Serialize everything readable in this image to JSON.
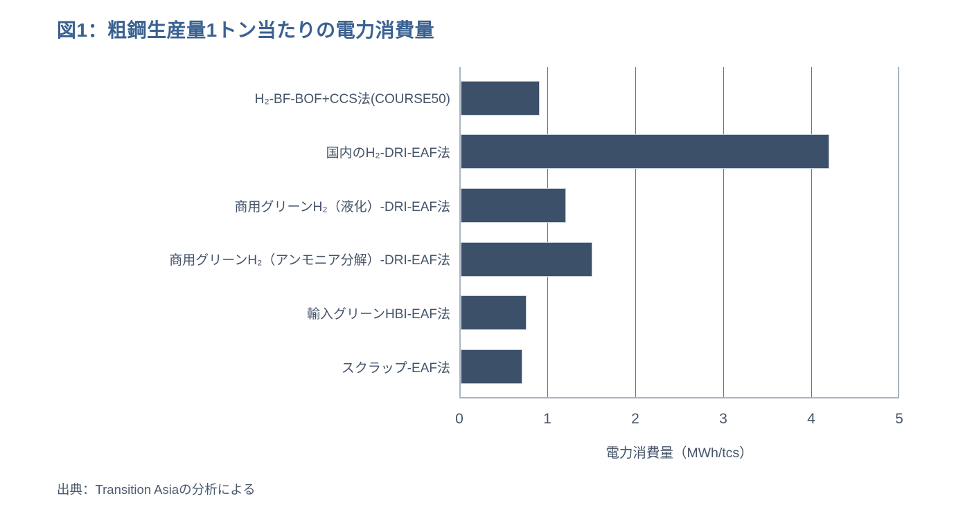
{
  "page": {
    "title": "図1：粗鋼生産量1トン当たりの電力消費量",
    "source": "出典：Transition Asiaの分析による"
  },
  "chart_data": {
    "type": "bar",
    "orientation": "horizontal",
    "title": "図1：粗鋼生産量1トン当たりの電力消費量",
    "categories": [
      "H₂-BF-BOF+CCS法(COURSE50)",
      "国内のH₂-DRI-EAF法",
      "商用グリーンH₂（液化）-DRI-EAF法",
      "商用グリーンH₂（アンモニア分解）-DRI-EAF法",
      "輸入グリーンHBI-EAF法",
      "スクラップ-EAF法"
    ],
    "values": [
      0.9,
      4.2,
      1.2,
      1.5,
      0.75,
      0.7
    ],
    "xlabel": "電力消費量（MWh/tcs）",
    "ylabel": "",
    "x_ticks": [
      "0",
      "1",
      "2",
      "3",
      "4",
      "5"
    ],
    "xlim": [
      0,
      5
    ],
    "grid": "vertical",
    "legend": "none",
    "source": "出典：Transition Asiaの分析による",
    "colors": {
      "bar": "#3c5069",
      "title": "#3a6191",
      "label_text": "#455469",
      "gridline": "#5e7087",
      "frame": "#a9b4c2",
      "source_text": "#4b5a6e"
    }
  }
}
